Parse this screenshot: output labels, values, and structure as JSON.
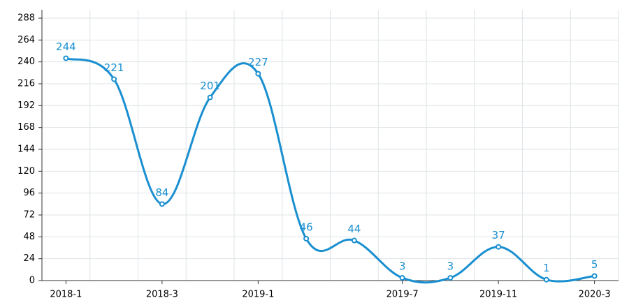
{
  "chart_data": {
    "type": "line",
    "categories": [
      "2018-1",
      null,
      "2018-3",
      null,
      "2019-1",
      null,
      null,
      "2019-7",
      null,
      "2019-11",
      null,
      "2020-3"
    ],
    "series": [
      {
        "color": "#1a8fd0",
        "values": [
          244,
          221,
          84,
          201,
          227,
          46,
          44,
          3,
          3,
          37,
          1,
          5
        ]
      }
    ],
    "ylim": [
      0,
      288
    ],
    "yticks": [
      0,
      24,
      48,
      72,
      96,
      120,
      144,
      168,
      192,
      216,
      240,
      264,
      288
    ],
    "grid": true,
    "smooth": true
  }
}
